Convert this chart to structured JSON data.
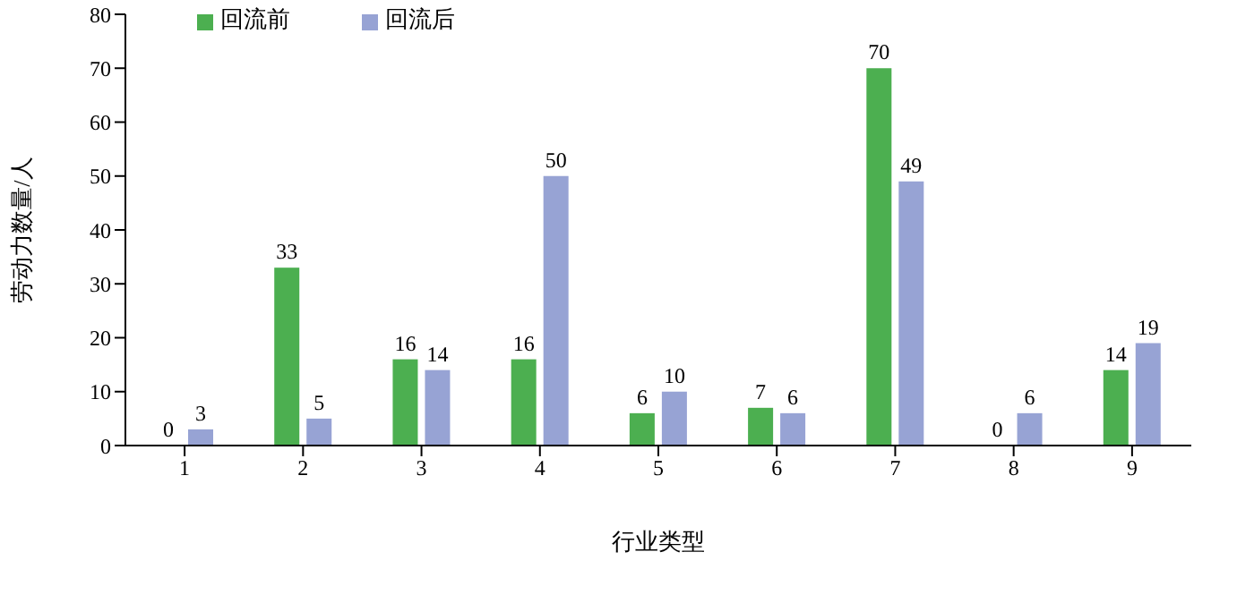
{
  "chart_data": {
    "type": "bar",
    "xlabel": "行业类型",
    "ylabel": "劳动力数量/人",
    "categories": [
      "1",
      "2",
      "3",
      "4",
      "5",
      "6",
      "7",
      "8",
      "9"
    ],
    "series": [
      {
        "name": "回流前",
        "color": "#4caf50",
        "values": [
          0,
          33,
          16,
          16,
          6,
          7,
          70,
          0,
          14
        ]
      },
      {
        "name": "回流后",
        "color": "#97a3d4",
        "values": [
          3,
          5,
          14,
          50,
          10,
          6,
          49,
          6,
          19
        ]
      }
    ],
    "ylim": [
      0,
      80
    ],
    "yticks": [
      0,
      10,
      20,
      30,
      40,
      50,
      60,
      70,
      80
    ],
    "grid": false,
    "legend": "top left",
    "data_labels": true
  }
}
